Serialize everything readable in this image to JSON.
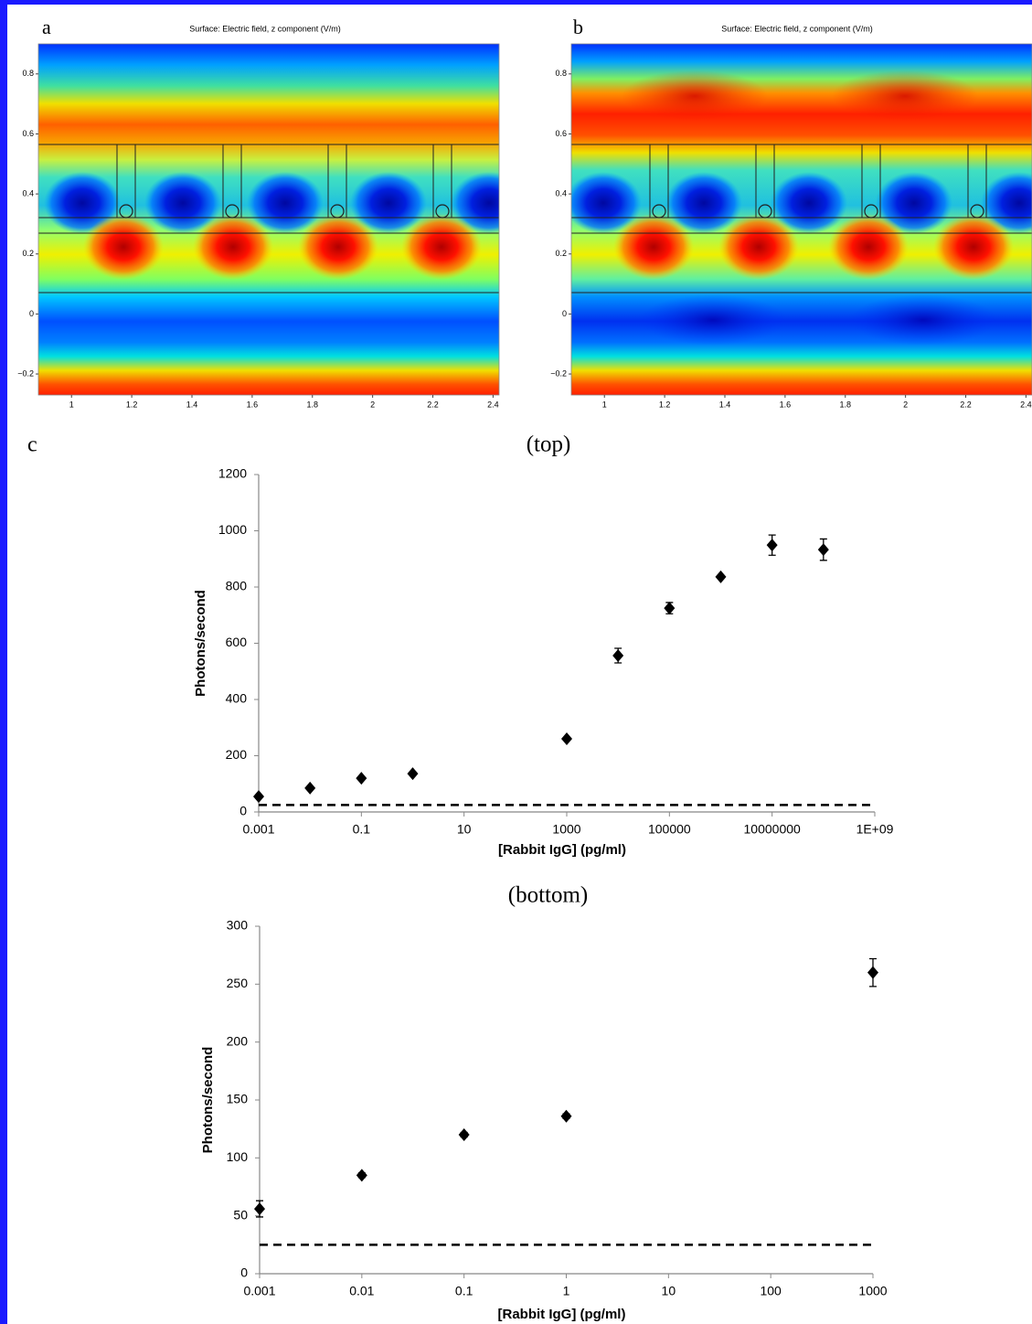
{
  "chart_data": [
    {
      "type": "heatmap",
      "panel": "a",
      "title": "Surface: Electric field, z component (V/m)",
      "xlim": [
        0.89,
        2.42
      ],
      "ylim": [
        -0.27,
        0.9
      ],
      "xticks": [
        1,
        1.2,
        1.4,
        1.6,
        1.8,
        2,
        2.2,
        2.4
      ],
      "yticks": [
        {
          "value": -0.2,
          "label": "−0.2"
        },
        0,
        0.2,
        0.4,
        0.6,
        0.8
      ]
    },
    {
      "type": "heatmap",
      "panel": "b",
      "title": "Surface: Electric field, z component (V/m)",
      "xlim": [
        0.89,
        2.42
      ],
      "ylim": [
        -0.27,
        0.9
      ],
      "xticks": [
        1,
        1.2,
        1.4,
        1.6,
        1.8,
        2,
        2.2,
        2.4
      ],
      "yticks": [
        {
          "value": -0.2,
          "label": "−0.2"
        },
        0,
        0.2,
        0.4,
        0.6,
        0.8
      ]
    },
    {
      "type": "scatter",
      "panel": "c",
      "title": "(top)",
      "xlog": true,
      "color": "#000000",
      "x": [
        0.001,
        0.01,
        0.1,
        1,
        1000,
        10000,
        100000,
        1000000,
        10000000,
        100000000
      ],
      "values": [
        55,
        85,
        120,
        136,
        260,
        556,
        725,
        836,
        949,
        933
      ],
      "errors": [
        6,
        3,
        3,
        3,
        6,
        26,
        20,
        5,
        36,
        38
      ],
      "baseline": 25,
      "xlabel": "[Rabbit IgG] (pg/ml)",
      "ylabel": "Photons/second",
      "xlim": [
        0.001,
        1000000000
      ],
      "ylim": [
        0,
        1200
      ],
      "xticks": [
        0.001,
        0.1,
        10,
        1000,
        100000,
        10000000,
        {
          "value": 1000000000,
          "label": "1E+09"
        }
      ],
      "yticks": [
        0,
        200,
        400,
        600,
        800,
        1000,
        1200
      ]
    },
    {
      "type": "scatter",
      "title": "(bottom)",
      "xlog": true,
      "color": "#000000",
      "x": [
        0.001,
        0.01,
        0.1,
        1,
        1000
      ],
      "values": [
        56,
        85,
        120,
        136,
        260
      ],
      "errors": [
        7,
        2,
        2,
        2,
        12
      ],
      "baseline": 25,
      "xlabel": "[Rabbit IgG] (pg/ml)",
      "ylabel": "Photons/second",
      "xlim": [
        0.001,
        1000
      ],
      "ylim": [
        0,
        300
      ],
      "xticks": [
        0.001,
        0.01,
        0.1,
        1,
        10,
        100,
        1000
      ],
      "yticks": [
        0,
        50,
        100,
        150,
        200,
        250,
        300
      ]
    }
  ]
}
